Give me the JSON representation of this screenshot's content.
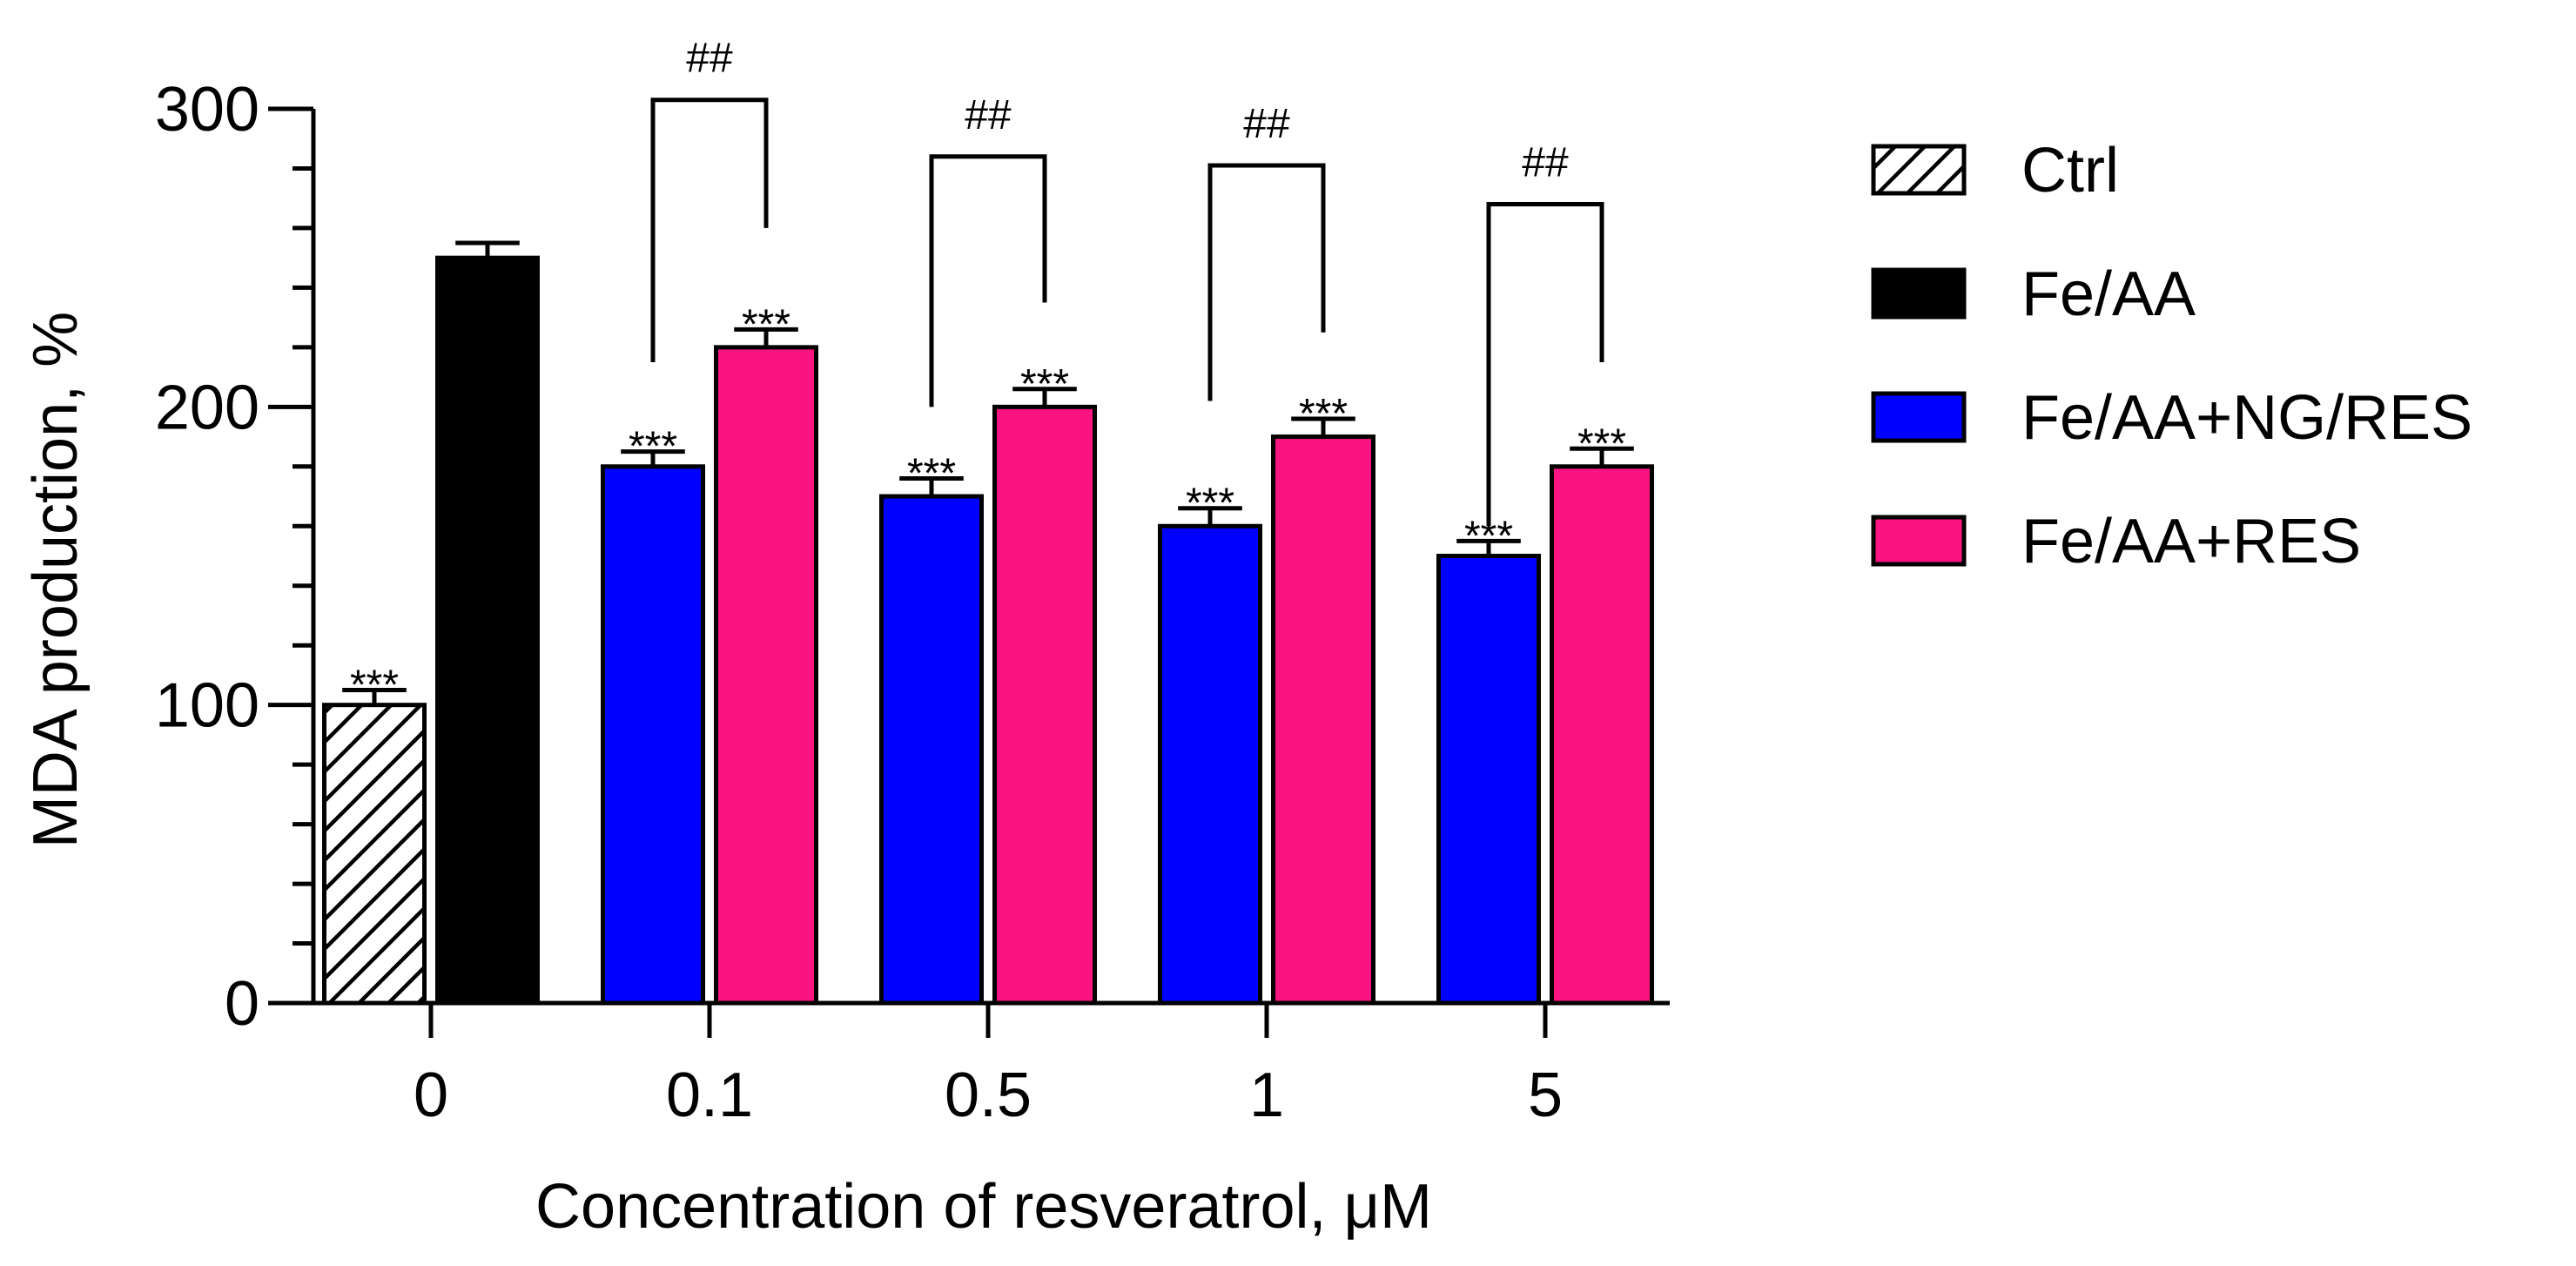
{
  "chart_data": {
    "type": "bar",
    "xlabel": "Concentration of resveratrol, μM",
    "ylabel": "MDA production, %",
    "ylim": [
      0,
      300
    ],
    "yticks": [
      0,
      100,
      200,
      300
    ],
    "y_minor_step": 20,
    "categories": [
      "0",
      "0.1",
      "0.5",
      "1",
      "5"
    ],
    "legend_position": "right",
    "series": [
      {
        "name": "Ctrl",
        "color": "#ffffff",
        "pattern": "hatch",
        "values": [
          100,
          null,
          null,
          null,
          null
        ],
        "errors": [
          5,
          null,
          null,
          null,
          null
        ],
        "annotations": [
          "***",
          null,
          null,
          null,
          null
        ]
      },
      {
        "name": "Fe/AA",
        "color": "#000000",
        "pattern": "solid",
        "values": [
          250,
          null,
          null,
          null,
          null
        ],
        "errors": [
          5,
          null,
          null,
          null,
          null
        ],
        "annotations": [
          null,
          null,
          null,
          null,
          null
        ]
      },
      {
        "name": "Fe/AA+NG/RES",
        "color": "#0000ff",
        "pattern": "solid",
        "values": [
          null,
          180,
          170,
          160,
          150
        ],
        "errors": [
          null,
          5,
          6,
          6,
          5
        ],
        "annotations": [
          null,
          "***",
          "***",
          "***",
          "***"
        ]
      },
      {
        "name": "Fe/AA+RES",
        "color": "#fa1482",
        "pattern": "solid",
        "values": [
          null,
          220,
          200,
          190,
          180
        ],
        "errors": [
          null,
          6,
          6,
          6,
          6
        ],
        "annotations": [
          null,
          "***",
          "***",
          "***",
          "***"
        ]
      }
    ],
    "comparisons": [
      {
        "category": "0.1",
        "label": "##",
        "top": 303,
        "left_end": 215,
        "right_end": 260
      },
      {
        "category": "0.5",
        "label": "##",
        "top": 284,
        "left_end": 200,
        "right_end": 235
      },
      {
        "category": "1",
        "label": "##",
        "top": 281,
        "left_end": 202,
        "right_end": 225
      },
      {
        "category": "5",
        "label": "##",
        "top": 268,
        "left_end": 160,
        "right_end": 215
      }
    ]
  }
}
